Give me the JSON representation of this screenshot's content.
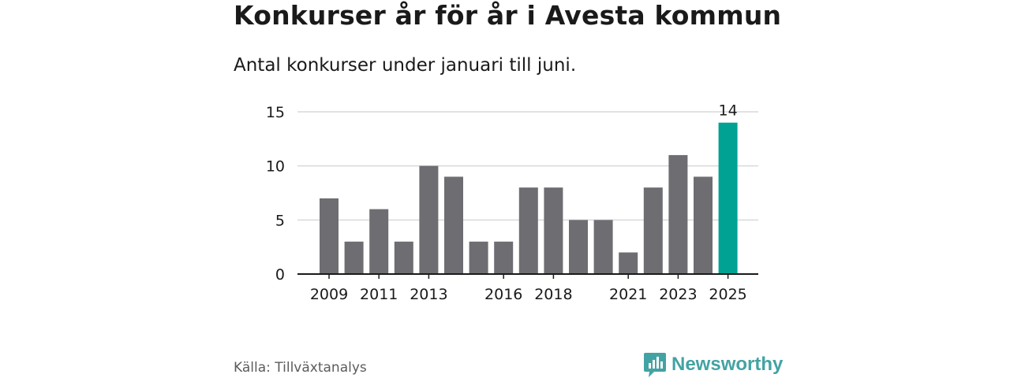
{
  "title": "Konkurser år för år i Avesta kommun",
  "subtitle": "Antal konkurser under januari till juni.",
  "source": "Källa: Tillväxtanalys",
  "brand": {
    "name": "Newsworthy",
    "icon": "newsworthy-logo-icon",
    "color": "#43a3a3"
  },
  "colors": {
    "bar": "#6e6d72",
    "highlight": "#00a293",
    "grid": "#d9d9d9",
    "axis": "#1a1a1a"
  },
  "chart_data": {
    "type": "bar",
    "title": "Konkurser år för år i Avesta kommun",
    "subtitle": "Antal konkurser under januari till juni.",
    "categories": [
      "2009",
      "2010",
      "2011",
      "2012",
      "2013",
      "2014",
      "2015",
      "2016",
      "2017",
      "2018",
      "2019",
      "2020",
      "2021",
      "2022",
      "2023",
      "2024",
      "2025"
    ],
    "values": [
      7,
      3,
      6,
      3,
      10,
      9,
      3,
      3,
      8,
      8,
      5,
      5,
      2,
      8,
      11,
      9,
      14
    ],
    "x_tick_labels": [
      "2009",
      "2011",
      "2013",
      "2016",
      "2018",
      "2021",
      "2023",
      "2025"
    ],
    "y_ticks": [
      0,
      5,
      10,
      15
    ],
    "ylim": [
      0,
      15
    ],
    "highlight": {
      "category": "2025",
      "label": "14"
    },
    "grid": true,
    "legend": "none",
    "xlabel": "",
    "ylabel": ""
  }
}
